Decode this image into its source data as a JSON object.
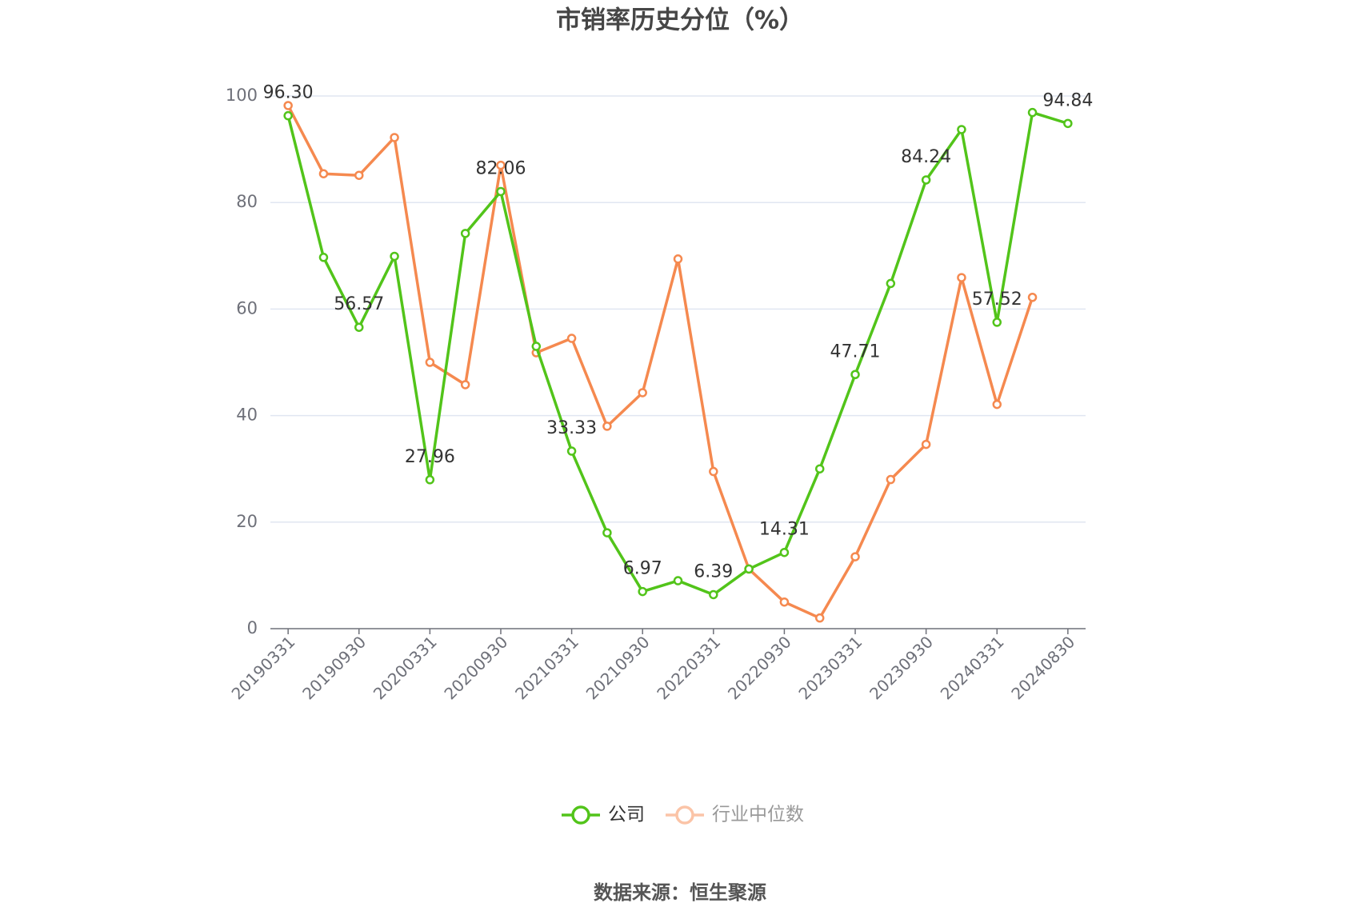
{
  "chart_data": {
    "type": "line",
    "title": "市销率历史分位（%）",
    "source": "数据来源：恒生聚源",
    "categories": [
      "20190331",
      null,
      "20190930",
      null,
      "20200331",
      null,
      "20200930",
      null,
      "20210331",
      null,
      "20210930",
      null,
      "20220331",
      null,
      "20220930",
      null,
      "20230331",
      null,
      "20230930",
      null,
      "20240331",
      null,
      "20240830"
    ],
    "series": [
      {
        "name": "公司",
        "color": "#52c41a",
        "values": [
          96.3,
          69.7,
          56.57,
          69.9,
          27.96,
          74.2,
          82.06,
          53.0,
          33.33,
          18.0,
          6.97,
          9.0,
          6.39,
          11.2,
          14.31,
          30.0,
          47.71,
          64.8,
          84.24,
          93.7,
          57.52,
          96.9,
          94.84
        ],
        "value_labels": [
          "96.30",
          null,
          "56.57",
          null,
          "27.96",
          null,
          "82.06",
          null,
          "33.33",
          null,
          "6.97",
          null,
          "6.39",
          null,
          "14.31",
          null,
          "47.71",
          null,
          "84.24",
          null,
          "57.52",
          null,
          "94.84"
        ]
      },
      {
        "name": "行业中位数",
        "color": "#f5894f",
        "values": [
          98.2,
          85.4,
          85.1,
          92.2,
          50.0,
          45.8,
          87.0,
          51.8,
          54.5,
          38.0,
          44.3,
          69.4,
          29.5,
          11.2,
          5.0,
          2.0,
          13.5,
          28.0,
          34.6,
          65.9,
          42.1,
          62.2,
          null
        ]
      }
    ],
    "ylim": [
      0,
      100
    ],
    "yticks": [
      0,
      20,
      40,
      60,
      80,
      100
    ],
    "grid": true
  }
}
